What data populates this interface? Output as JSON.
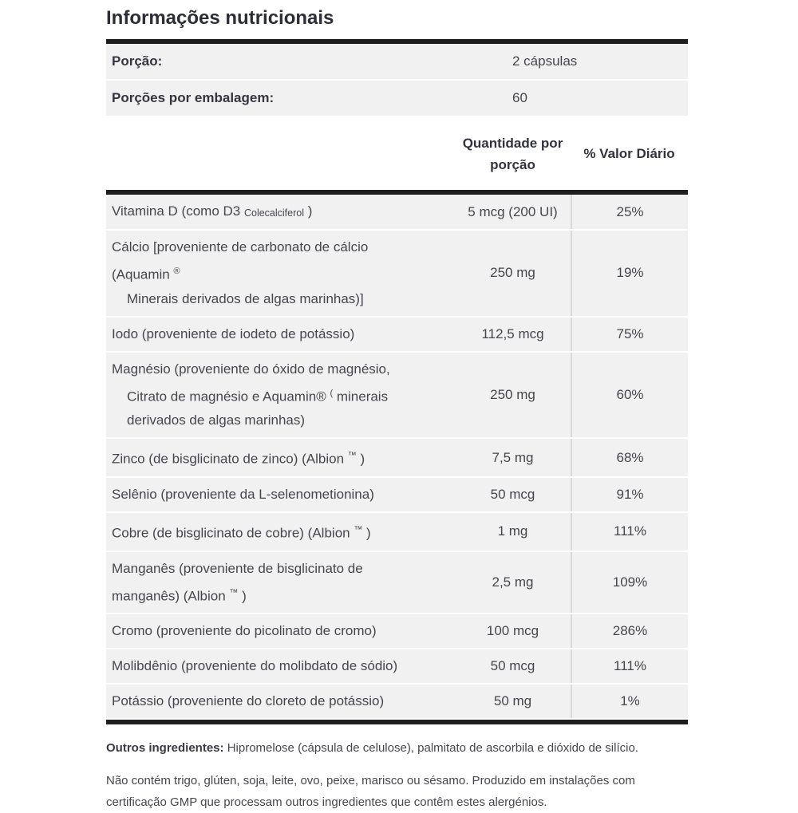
{
  "title": "Informações nutricionais",
  "serving": {
    "label": "Porção:",
    "value": "2 cápsulas"
  },
  "servings_per_container": {
    "label": "Porções por embalagem:",
    "value": "60"
  },
  "table": {
    "header": {
      "amount": "Quantidade por porção",
      "dv": "% Valor Diário"
    },
    "rows": [
      {
        "lines": [
          {
            "indent": false,
            "segments": [
              {
                "text": "Vitamina D (como D3 ",
                "style": "normal"
              },
              {
                "text": "Colecalciferol",
                "style": "small"
              },
              {
                "text": " )",
                "style": "normal"
              }
            ]
          }
        ],
        "amount": "5 mcg (200 UI)",
        "dv": "25%"
      },
      {
        "lines": [
          {
            "indent": false,
            "segments": [
              {
                "text": "Cálcio [proveniente de carbonato de cálcio",
                "style": "normal"
              }
            ]
          },
          {
            "indent": false,
            "segments": [
              {
                "text": "(Aquamin ",
                "style": "normal"
              },
              {
                "text": "®",
                "style": "sup"
              }
            ]
          },
          {
            "indent": true,
            "segments": [
              {
                "text": "Minerais derivados de algas marinhas)]",
                "style": "normal"
              }
            ]
          }
        ],
        "amount": "250 mg",
        "dv": "19%"
      },
      {
        "lines": [
          {
            "indent": false,
            "segments": [
              {
                "text": "Iodo (proveniente de iodeto de potássio)",
                "style": "normal"
              }
            ]
          }
        ],
        "amount": "112,5 mcg",
        "dv": "75%"
      },
      {
        "lines": [
          {
            "indent": false,
            "segments": [
              {
                "text": "Magnésio (proveniente do óxido de magnésio,",
                "style": "normal"
              }
            ]
          },
          {
            "indent": true,
            "segments": [
              {
                "text": "Citrato de magnésio e Aquamin® ",
                "style": "normal"
              },
              {
                "text": "(",
                "style": "sup"
              },
              {
                "text": " minerais",
                "style": "normal"
              }
            ]
          },
          {
            "indent": true,
            "segments": [
              {
                "text": "derivados de algas marinhas)",
                "style": "normal"
              }
            ]
          }
        ],
        "amount": "250 mg",
        "dv": "60%"
      },
      {
        "lines": [
          {
            "indent": false,
            "segments": [
              {
                "text": "Zinco (de bisglicinato de zinco) (Albion ",
                "style": "normal"
              },
              {
                "text": "™",
                "style": "sup"
              },
              {
                "text": " )",
                "style": "normal"
              }
            ]
          }
        ],
        "amount": "7,5 mg",
        "dv": "68%"
      },
      {
        "lines": [
          {
            "indent": false,
            "segments": [
              {
                "text": "Selênio (proveniente da L-selenometionina)",
                "style": "normal"
              }
            ]
          }
        ],
        "amount": "50 mcg",
        "dv": "91%"
      },
      {
        "lines": [
          {
            "indent": false,
            "segments": [
              {
                "text": "Cobre (de bisglicinato de cobre) (Albion ",
                "style": "normal"
              },
              {
                "text": "™",
                "style": "sup"
              },
              {
                "text": " )",
                "style": "normal"
              }
            ]
          }
        ],
        "amount": "1 mg",
        "dv": "111%"
      },
      {
        "lines": [
          {
            "indent": false,
            "segments": [
              {
                "text": "Manganês (proveniente de bisglicinato de",
                "style": "normal"
              }
            ]
          },
          {
            "indent": false,
            "segments": [
              {
                "text": "manganês) (Albion ",
                "style": "normal"
              },
              {
                "text": "™",
                "style": "sup"
              },
              {
                "text": " )",
                "style": "normal"
              }
            ]
          }
        ],
        "amount": "2,5 mg",
        "dv": "109%"
      },
      {
        "lines": [
          {
            "indent": false,
            "segments": [
              {
                "text": "Cromo (proveniente do picolinato de cromo)",
                "style": "normal"
              }
            ]
          }
        ],
        "amount": "100 mcg",
        "dv": "286%"
      },
      {
        "lines": [
          {
            "indent": false,
            "segments": [
              {
                "text": "Molibdênio (proveniente do molibdato de sódio)",
                "style": "normal"
              }
            ]
          }
        ],
        "amount": "50 mcg",
        "dv": "111%"
      },
      {
        "lines": [
          {
            "indent": false,
            "segments": [
              {
                "text": "Potássio (proveniente do cloreto de potássio)",
                "style": "normal"
              }
            ]
          }
        ],
        "amount": "50 mg",
        "dv": "1%"
      }
    ]
  },
  "footer": {
    "other_ingredients_label": "Outros ingredientes:",
    "other_ingredients_text": " Hipromelose (cápsula de celulose), palmitato de ascorbila e dióxido de silício.",
    "allergen_text": "Não contém trigo, glúten, soja, leite, ovo, peixe, marisco ou sésamo. Produzido em instalações com certificação GMP que processam outros ingredientes que contêm estes alergénios."
  },
  "colors": {
    "bar": "#1e1e1e",
    "row_background": "#f1f1f2",
    "column_divider": "#d8d8da",
    "title_text": "#2d2d38",
    "body_text": "#46464c"
  }
}
